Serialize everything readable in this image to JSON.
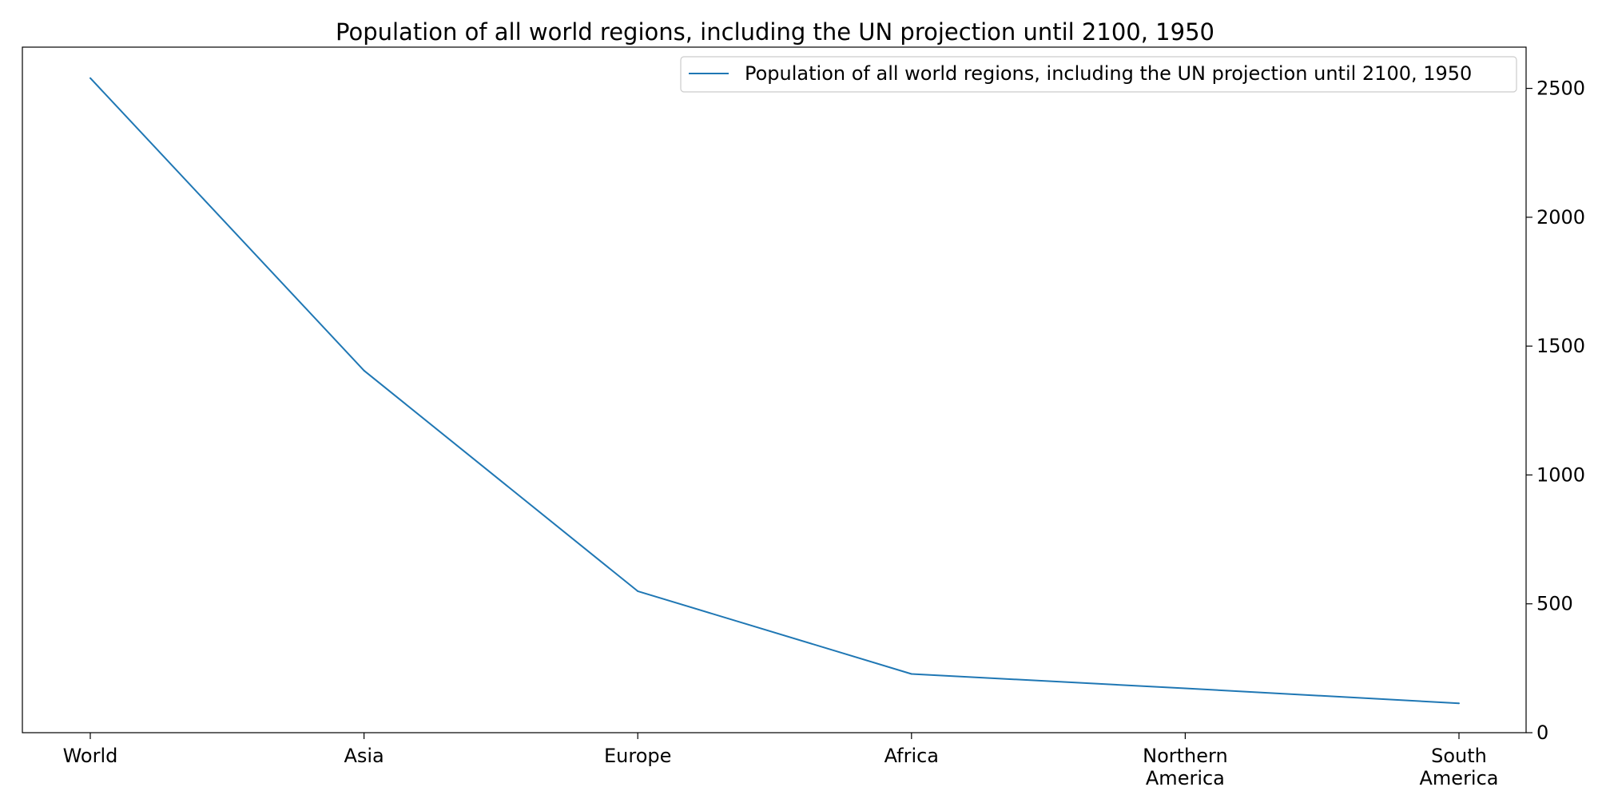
{
  "chart_data": {
    "type": "line",
    "title": "Population of all world regions, including the UN projection until 2100, 1950",
    "xlabel": "",
    "ylabel": "",
    "categories": [
      "World",
      "Asia",
      "Europe",
      "Africa",
      "Northern America",
      "South America"
    ],
    "category_label_lines": [
      [
        "World"
      ],
      [
        "Asia"
      ],
      [
        "Europe"
      ],
      [
        "Africa"
      ],
      [
        "Northern",
        "America"
      ],
      [
        "South",
        "America"
      ]
    ],
    "series": [
      {
        "name": "Population of all world regions, including the UN projection until 2100, 1950",
        "values": [
          2540,
          1405,
          549,
          228,
          172,
          114
        ],
        "color": "#1f77b4"
      }
    ],
    "ylim": [
      0,
      2660
    ],
    "yticks": [
      0,
      500,
      1000,
      1500,
      2000,
      2500
    ],
    "ytick_labels": [
      "0",
      "500",
      "1000",
      "1500",
      "2000",
      "2500"
    ],
    "y_axis_position": "right",
    "grid": false,
    "legend": {
      "position": "top-right",
      "entries": [
        "Population of all world regions, including the UN projection until 2100, 1950"
      ]
    }
  }
}
